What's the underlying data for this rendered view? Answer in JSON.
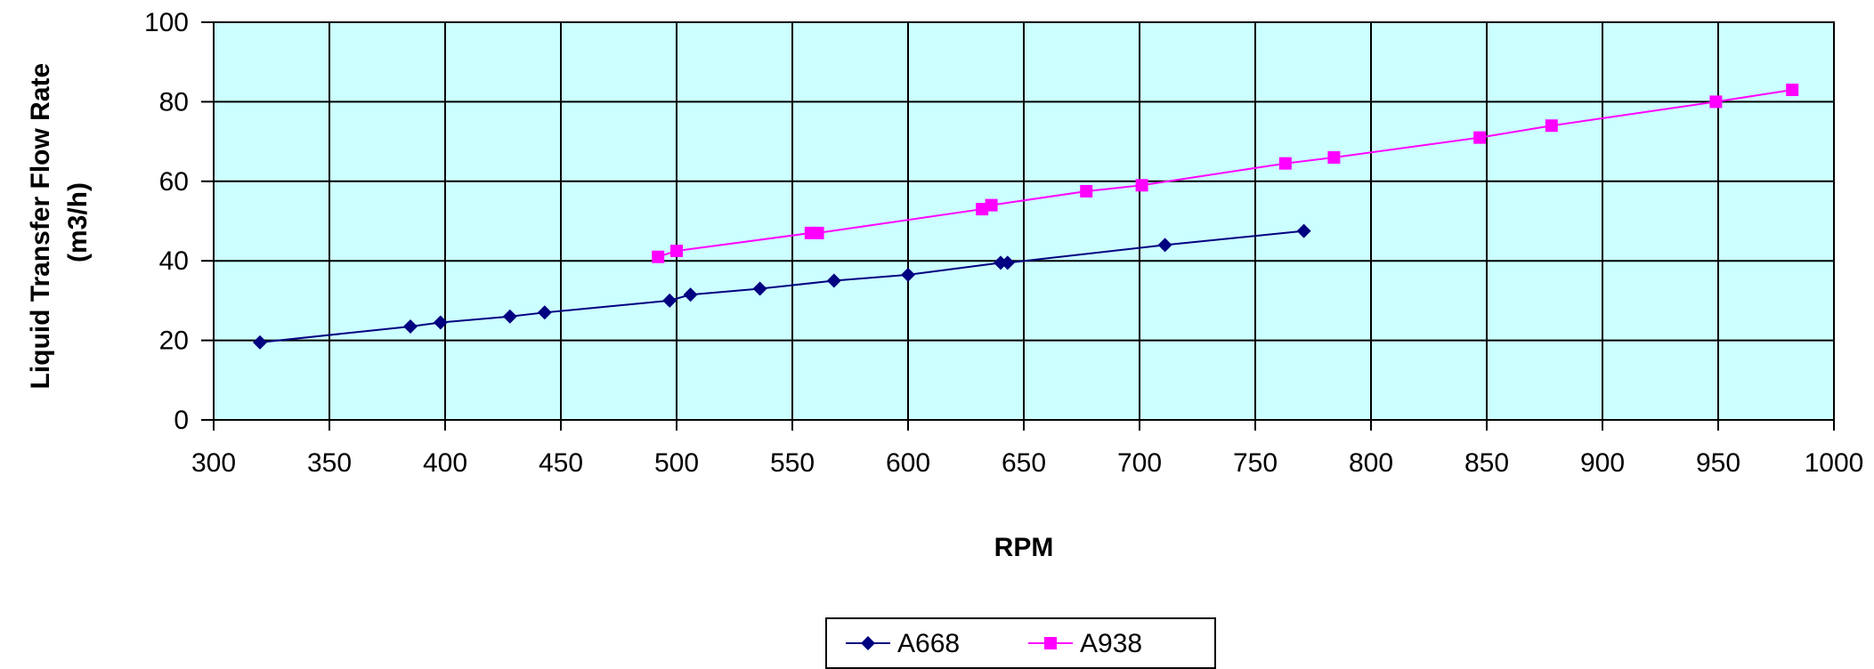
{
  "chart_data": {
    "type": "line",
    "xlabel": "RPM",
    "ylabel_lines": [
      "Liquid Transfer Flow Rate",
      "(m3/h)"
    ],
    "xlim": [
      300,
      1000
    ],
    "ylim": [
      0,
      100
    ],
    "xticks": [
      300,
      350,
      400,
      450,
      500,
      550,
      600,
      650,
      700,
      750,
      800,
      850,
      900,
      950,
      1000
    ],
    "yticks": [
      0,
      20,
      40,
      60,
      80,
      100
    ],
    "grid": true,
    "legend_position": "bottom",
    "colors": {
      "plot_bg": "#ccffff",
      "grid": "#000000"
    },
    "series": [
      {
        "name": "A668",
        "color": "#000080",
        "marker": "diamond",
        "x": [
          320,
          385,
          398,
          428,
          443,
          497,
          506,
          536,
          568,
          600,
          640,
          643,
          711,
          771
        ],
        "y": [
          19.5,
          23.5,
          24.5,
          26,
          27,
          30,
          31.5,
          33,
          35,
          36.5,
          39.5,
          39.5,
          44,
          47.5
        ]
      },
      {
        "name": "A938",
        "color": "#ff00ff",
        "marker": "square",
        "x": [
          492,
          500,
          558,
          561,
          632,
          636,
          677,
          701,
          763,
          784,
          847,
          878,
          949,
          982
        ],
        "y": [
          41,
          42.5,
          47,
          47,
          53,
          54,
          57.5,
          59,
          64.5,
          66,
          71,
          74,
          80,
          83
        ]
      }
    ]
  }
}
